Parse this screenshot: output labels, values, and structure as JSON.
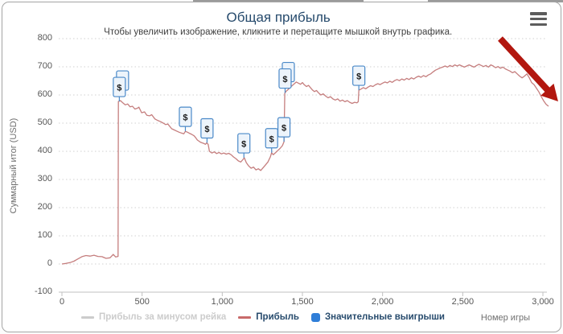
{
  "chart": {
    "title": "Общая прибыль",
    "subtitle": "Чтобы увеличить изображение, кликните и перетащите мышкой внутрь графика.",
    "y_axis": {
      "title": "Суммарный итог (USD)",
      "min": -100,
      "max": 800,
      "ticks": [
        800,
        700,
        600,
        500,
        400,
        300,
        200,
        100,
        0,
        -100
      ]
    },
    "x_axis": {
      "title": "Номер игры",
      "min": 0,
      "max": 3000,
      "ticks": [
        {
          "value": 0,
          "label": "0"
        },
        {
          "value": 500,
          "label": "500"
        },
        {
          "value": 1000,
          "label": "1,000"
        },
        {
          "value": 1500,
          "label": "1,500"
        },
        {
          "value": 2000,
          "label": "2,000"
        },
        {
          "value": 2500,
          "label": "2,500"
        },
        {
          "value": 3000,
          "label": "3,000"
        }
      ]
    },
    "legend": [
      {
        "label": "Прибыль за минусом рейка",
        "type": "line",
        "color": "#cccccc",
        "disabled": true
      },
      {
        "label": "Прибыль",
        "type": "line",
        "color": "#c86a6a",
        "disabled": false
      },
      {
        "label": "Значительные выигрыши",
        "type": "square",
        "color": "#2f7ed8",
        "disabled": false
      }
    ],
    "colors": {
      "title": "#274b6d",
      "grid": "#d0d0d0",
      "axis": "#c0c0c0",
      "line": "#c57e7e",
      "flag_fill": "#edf4fb",
      "flag_border": "#4a89c8",
      "flag_text": "#1a1a1a",
      "arrow": "#b2170f"
    }
  },
  "chart_data": {
    "type": "line",
    "title": "Общая прибыль",
    "subtitle": "Чтобы увеличить изображение, кликните и перетащите мышкой внутрь графика.",
    "xlabel": "Номер игры",
    "ylabel": "Суммарный итог (USD)",
    "xlim": [
      0,
      3050
    ],
    "ylim": [
      -100,
      800
    ],
    "grid": "horizontal-dotted",
    "legend_position": "bottom-center",
    "series": [
      {
        "name": "Прибыль за минусом рейка",
        "type": "line",
        "color": "#cccccc",
        "visible": false,
        "points": []
      },
      {
        "name": "Прибыль",
        "type": "line",
        "color": "#c57e7e",
        "visible": true,
        "points": [
          [
            0,
            0
          ],
          [
            25,
            2
          ],
          [
            50,
            5
          ],
          [
            75,
            10
          ],
          [
            100,
            18
          ],
          [
            125,
            26
          ],
          [
            150,
            30
          ],
          [
            175,
            28
          ],
          [
            200,
            31
          ],
          [
            225,
            27
          ],
          [
            250,
            26
          ],
          [
            275,
            20
          ],
          [
            300,
            22
          ],
          [
            320,
            34
          ],
          [
            335,
            25
          ],
          [
            350,
            27
          ],
          [
            352,
            577
          ],
          [
            365,
            580
          ],
          [
            380,
            572
          ],
          [
            395,
            565
          ],
          [
            410,
            568
          ],
          [
            425,
            558
          ],
          [
            440,
            560
          ],
          [
            455,
            550
          ],
          [
            470,
            553
          ],
          [
            480,
            557
          ],
          [
            497,
            537
          ],
          [
            515,
            540
          ],
          [
            530,
            528
          ],
          [
            547,
            526
          ],
          [
            560,
            530
          ],
          [
            580,
            515
          ],
          [
            600,
            509
          ],
          [
            617,
            505
          ],
          [
            632,
            500
          ],
          [
            647,
            495
          ],
          [
            660,
            497
          ],
          [
            673,
            488
          ],
          [
            685,
            480
          ],
          [
            700,
            476
          ],
          [
            715,
            472
          ],
          [
            730,
            468
          ],
          [
            745,
            465
          ],
          [
            760,
            462
          ],
          [
            770,
            471
          ],
          [
            782,
            468
          ],
          [
            795,
            464
          ],
          [
            810,
            460
          ],
          [
            825,
            455
          ],
          [
            835,
            448
          ],
          [
            845,
            440
          ],
          [
            855,
            436
          ],
          [
            865,
            432
          ],
          [
            875,
            430
          ],
          [
            885,
            428
          ],
          [
            895,
            425
          ],
          [
            903,
            430
          ],
          [
            912,
            425
          ],
          [
            920,
            400
          ],
          [
            935,
            394
          ],
          [
            950,
            398
          ],
          [
            965,
            392
          ],
          [
            980,
            396
          ],
          [
            995,
            391
          ],
          [
            1010,
            394
          ],
          [
            1025,
            390
          ],
          [
            1040,
            393
          ],
          [
            1055,
            388
          ],
          [
            1070,
            380
          ],
          [
            1085,
            374
          ],
          [
            1100,
            366
          ],
          [
            1115,
            362
          ],
          [
            1128,
            370
          ],
          [
            1138,
            377
          ],
          [
            1150,
            360
          ],
          [
            1165,
            348
          ],
          [
            1180,
            340
          ],
          [
            1195,
            344
          ],
          [
            1210,
            334
          ],
          [
            1225,
            338
          ],
          [
            1240,
            332
          ],
          [
            1255,
            342
          ],
          [
            1270,
            352
          ],
          [
            1285,
            362
          ],
          [
            1300,
            380
          ],
          [
            1308,
            395
          ],
          [
            1318,
            388
          ],
          [
            1330,
            394
          ],
          [
            1345,
            402
          ],
          [
            1360,
            410
          ],
          [
            1375,
            420
          ],
          [
            1385,
            434
          ],
          [
            1390,
            607
          ],
          [
            1400,
            614
          ],
          [
            1412,
            620
          ],
          [
            1425,
            628
          ],
          [
            1438,
            634
          ],
          [
            1450,
            640
          ],
          [
            1462,
            646
          ],
          [
            1475,
            642
          ],
          [
            1488,
            638
          ],
          [
            1500,
            644
          ],
          [
            1512,
            636
          ],
          [
            1525,
            630
          ],
          [
            1538,
            634
          ],
          [
            1550,
            626
          ],
          [
            1562,
            618
          ],
          [
            1575,
            612
          ],
          [
            1588,
            616
          ],
          [
            1600,
            608
          ],
          [
            1615,
            600
          ],
          [
            1630,
            604
          ],
          [
            1645,
            596
          ],
          [
            1660,
            590
          ],
          [
            1675,
            594
          ],
          [
            1690,
            586
          ],
          [
            1705,
            582
          ],
          [
            1720,
            586
          ],
          [
            1735,
            578
          ],
          [
            1750,
            582
          ],
          [
            1765,
            576
          ],
          [
            1780,
            580
          ],
          [
            1795,
            574
          ],
          [
            1810,
            570
          ],
          [
            1825,
            574
          ],
          [
            1840,
            572
          ],
          [
            1848,
            576
          ],
          [
            1852,
            617
          ],
          [
            1865,
            621
          ],
          [
            1880,
            626
          ],
          [
            1895,
            622
          ],
          [
            1910,
            628
          ],
          [
            1925,
            633
          ],
          [
            1940,
            630
          ],
          [
            1955,
            636
          ],
          [
            1970,
            640
          ],
          [
            1985,
            637
          ],
          [
            2000,
            642
          ],
          [
            2015,
            646
          ],
          [
            2030,
            643
          ],
          [
            2045,
            649
          ],
          [
            2060,
            645
          ],
          [
            2075,
            651
          ],
          [
            2090,
            655
          ],
          [
            2105,
            651
          ],
          [
            2120,
            657
          ],
          [
            2135,
            653
          ],
          [
            2150,
            659
          ],
          [
            2165,
            655
          ],
          [
            2180,
            661
          ],
          [
            2195,
            657
          ],
          [
            2210,
            663
          ],
          [
            2225,
            667
          ],
          [
            2240,
            663
          ],
          [
            2255,
            669
          ],
          [
            2270,
            665
          ],
          [
            2285,
            671
          ],
          [
            2300,
            675
          ],
          [
            2315,
            682
          ],
          [
            2330,
            688
          ],
          [
            2345,
            692
          ],
          [
            2360,
            696
          ],
          [
            2375,
            699
          ],
          [
            2390,
            703
          ],
          [
            2405,
            699
          ],
          [
            2420,
            705
          ],
          [
            2435,
            701
          ],
          [
            2450,
            707
          ],
          [
            2465,
            703
          ],
          [
            2480,
            707
          ],
          [
            2495,
            703
          ],
          [
            2510,
            699
          ],
          [
            2525,
            703
          ],
          [
            2540,
            707
          ],
          [
            2555,
            703
          ],
          [
            2570,
            699
          ],
          [
            2585,
            704
          ],
          [
            2600,
            709
          ],
          [
            2615,
            705
          ],
          [
            2630,
            701
          ],
          [
            2645,
            705
          ],
          [
            2660,
            699
          ],
          [
            2675,
            707
          ],
          [
            2690,
            703
          ],
          [
            2705,
            697
          ],
          [
            2720,
            701
          ],
          [
            2735,
            695
          ],
          [
            2750,
            699
          ],
          [
            2765,
            693
          ],
          [
            2780,
            689
          ],
          [
            2795,
            685
          ],
          [
            2810,
            679
          ],
          [
            2825,
            683
          ],
          [
            2840,
            675
          ],
          [
            2855,
            667
          ],
          [
            2870,
            661
          ],
          [
            2885,
            667
          ],
          [
            2900,
            675
          ],
          [
            2915,
            661
          ],
          [
            2930,
            644
          ],
          [
            2945,
            637
          ],
          [
            2960,
            624
          ],
          [
            2975,
            611
          ],
          [
            2990,
            594
          ],
          [
            3005,
            579
          ],
          [
            3020,
            567
          ],
          [
            3035,
            560
          ]
        ]
      },
      {
        "name": "Значительные выигрыши",
        "type": "flags",
        "symbol": "$",
        "color": "#2f7ed8",
        "visible": true,
        "points": [
          {
            "game": 358,
            "value": 577,
            "count": 2
          },
          {
            "game": 770,
            "value": 471,
            "count": 1
          },
          {
            "game": 905,
            "value": 430,
            "count": 1
          },
          {
            "game": 1135,
            "value": 377,
            "count": 1
          },
          {
            "game": 1308,
            "value": 395,
            "count": 1
          },
          {
            "game": 1385,
            "value": 434,
            "count": 1
          },
          {
            "game": 1392,
            "value": 607,
            "count": 2
          },
          {
            "game": 1852,
            "value": 617,
            "count": 1
          }
        ]
      }
    ],
    "annotations": [
      {
        "type": "arrow",
        "color": "#b2170f",
        "from": {
          "game": 2734,
          "value": 800
        },
        "to": {
          "game": 3095,
          "value": 577
        }
      }
    ]
  }
}
